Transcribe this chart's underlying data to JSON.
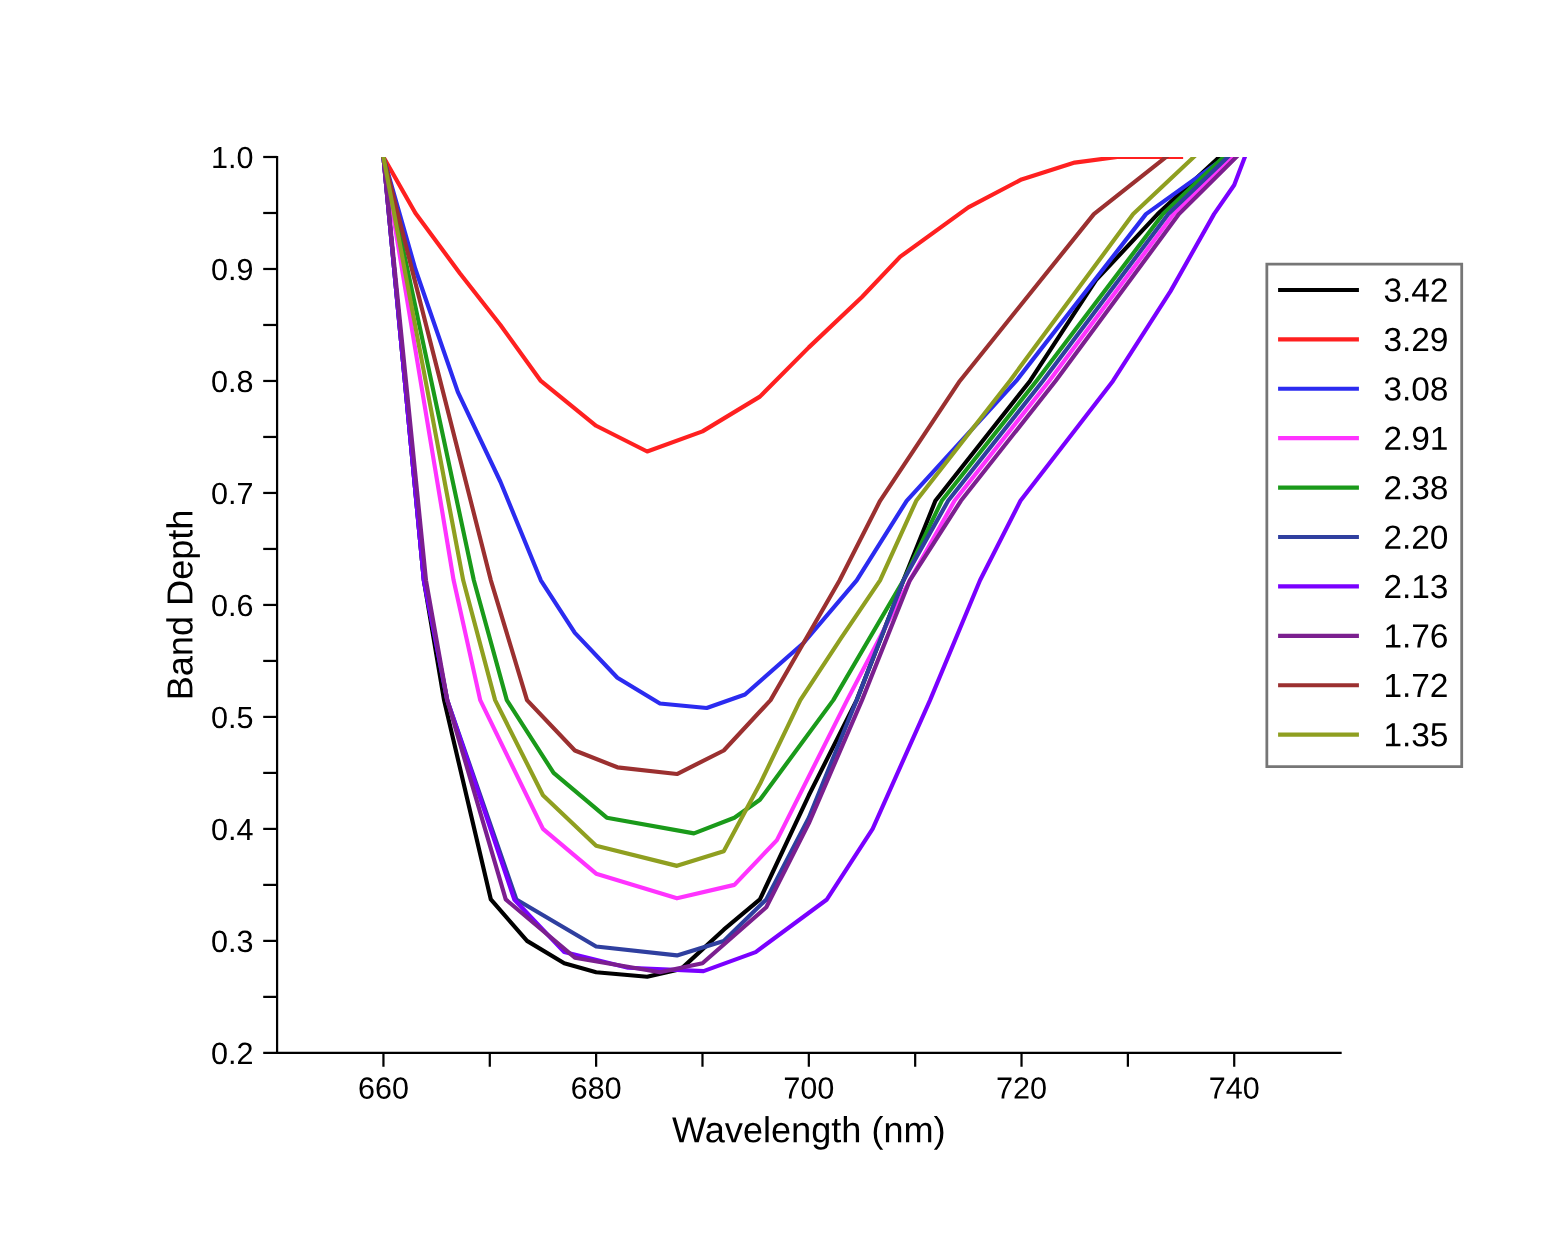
{
  "chart_data": {
    "type": "line",
    "xlabel": "Wavelength (nm)",
    "ylabel": "Band Depth",
    "xlim": [
      650,
      750
    ],
    "ylim": [
      0.2,
      1.0
    ],
    "xticks": [
      660,
      {
        "value": 670,
        "label": null
      },
      680,
      {
        "value": 690,
        "label": null
      },
      700,
      {
        "value": 710,
        "label": null
      },
      720,
      {
        "value": 730,
        "label": null
      },
      740
    ],
    "yticks": [
      0.2,
      {
        "value": 0.25,
        "label": null
      },
      0.3,
      {
        "value": 0.35,
        "label": null
      },
      0.4,
      {
        "value": 0.45,
        "label": null
      },
      0.5,
      {
        "value": 0.55,
        "label": null
      },
      0.6,
      {
        "value": 0.65,
        "label": null
      },
      0.7,
      {
        "value": 0.75,
        "label": null
      },
      0.8,
      {
        "value": 0.85,
        "label": null
      },
      0.9,
      {
        "value": 0.95,
        "label": null
      },
      {
        "value": 1.0,
        "label": "1.0"
      }
    ],
    "grid": false,
    "legend": "right",
    "marker": "none",
    "line_style": "solid",
    "series": [
      {
        "name": "3.42",
        "color": "#000000",
        "x": [
          660,
          663.8,
          665.7,
          670.1,
          673.5,
          677,
          680,
          684.8,
          688,
          692,
          695.4,
          700,
          704.5,
          708.9,
          711.9,
          720.8,
          727,
          732.8,
          738.6
        ],
        "values": [
          1.0,
          0.622,
          0.515,
          0.337,
          0.3,
          0.28,
          0.272,
          0.268,
          0.275,
          0.31,
          0.337,
          0.43,
          0.515,
          0.622,
          0.693,
          0.8,
          0.89,
          0.949,
          1.0
        ]
      },
      {
        "name": "3.29",
        "color": "#ff2020",
        "x": [
          660,
          663,
          667.2,
          671,
          674.8,
          680,
          684.8,
          690,
          695.4,
          700,
          705,
          708.6,
          715,
          720,
          725,
          729,
          735
        ],
        "values": [
          1.0,
          0.95,
          0.896,
          0.85,
          0.8,
          0.76,
          0.737,
          0.755,
          0.786,
          0.83,
          0.875,
          0.911,
          0.955,
          0.98,
          0.995,
          1.0,
          1.0
        ]
      },
      {
        "name": "3.08",
        "color": "#2b2bf0",
        "x": [
          660,
          663,
          667,
          671,
          674.8,
          678,
          682,
          686,
          690.4,
          694,
          699.5,
          704.5,
          709.2,
          719.5,
          731.7,
          739.2
        ],
        "values": [
          1.0,
          0.9,
          0.79,
          0.71,
          0.622,
          0.575,
          0.535,
          0.512,
          0.508,
          0.52,
          0.566,
          0.622,
          0.693,
          0.8,
          0.949,
          1.0
        ]
      },
      {
        "name": "2.91",
        "color": "#ff33ff",
        "x": [
          660,
          666.6,
          669.1,
          675,
          680,
          687.6,
          693,
          697,
          703.6,
          709.5,
          713.7,
          722.6,
          734.3,
          739.8
        ],
        "values": [
          1.0,
          0.622,
          0.515,
          0.4,
          0.36,
          0.338,
          0.35,
          0.39,
          0.515,
          0.622,
          0.693,
          0.8,
          0.949,
          1.0
        ]
      },
      {
        "name": "2.38",
        "color": "#1a9a1a",
        "x": [
          660,
          668.5,
          671.6,
          676,
          681,
          689.2,
          693,
          695.4,
          702.3,
          708.9,
          712.5,
          721.4,
          733.3,
          739.0
        ],
        "values": [
          1.0,
          0.622,
          0.515,
          0.45,
          0.41,
          0.396,
          0.41,
          0.426,
          0.515,
          0.622,
          0.693,
          0.8,
          0.949,
          1.0
        ]
      },
      {
        "name": "2.20",
        "color": "#2f3f9f",
        "x": [
          660,
          663.8,
          666,
          672.5,
          680,
          687.6,
          692,
          696,
          700,
          704.5,
          708.9,
          713.1,
          722.0,
          733.8,
          739.4
        ],
        "values": [
          1.0,
          0.622,
          0.515,
          0.337,
          0.295,
          0.287,
          0.3,
          0.337,
          0.41,
          0.515,
          0.622,
          0.693,
          0.8,
          0.949,
          1.0
        ]
      },
      {
        "name": "2.13",
        "color": "#7a00ff",
        "x": [
          660,
          663.8,
          666,
          672.3,
          677,
          683,
          690.1,
          695,
          701.7,
          706,
          711.4,
          716.1,
          719.9,
          728.6,
          734,
          738.1,
          740,
          741
        ],
        "values": [
          1.0,
          0.622,
          0.515,
          0.337,
          0.29,
          0.276,
          0.273,
          0.29,
          0.337,
          0.4,
          0.515,
          0.622,
          0.693,
          0.8,
          0.88,
          0.949,
          0.975,
          1.0
        ]
      },
      {
        "name": "1.76",
        "color": "#7b1f8f",
        "x": [
          660,
          664,
          666,
          671.5,
          678,
          686,
          690,
          696,
          700,
          705,
          709.5,
          714.3,
          723.2,
          734.8,
          740.2
        ],
        "values": [
          1.0,
          0.622,
          0.515,
          0.337,
          0.285,
          0.272,
          0.28,
          0.33,
          0.405,
          0.515,
          0.622,
          0.693,
          0.8,
          0.949,
          1.0
        ]
      },
      {
        "name": "1.72",
        "color": "#9b3030",
        "x": [
          660,
          670.1,
          673.5,
          678,
          682,
          687.6,
          692,
          696.4,
          699.5,
          702.9,
          706.7,
          714.2,
          726.8,
          733.6
        ],
        "values": [
          1.0,
          0.622,
          0.515,
          0.47,
          0.455,
          0.449,
          0.47,
          0.515,
          0.566,
          0.622,
          0.693,
          0.8,
          0.949,
          1.0
        ]
      },
      {
        "name": "1.35",
        "color": "#8f9f20",
        "x": [
          660,
          667.5,
          670.5,
          675,
          680,
          687.6,
          692,
          695.4,
          699.2,
          703,
          706.7,
          710.1,
          718.9,
          730.5,
          736.2
        ],
        "values": [
          1.0,
          0.622,
          0.515,
          0.43,
          0.385,
          0.367,
          0.38,
          0.44,
          0.515,
          0.57,
          0.622,
          0.693,
          0.8,
          0.949,
          1.0
        ]
      }
    ]
  }
}
